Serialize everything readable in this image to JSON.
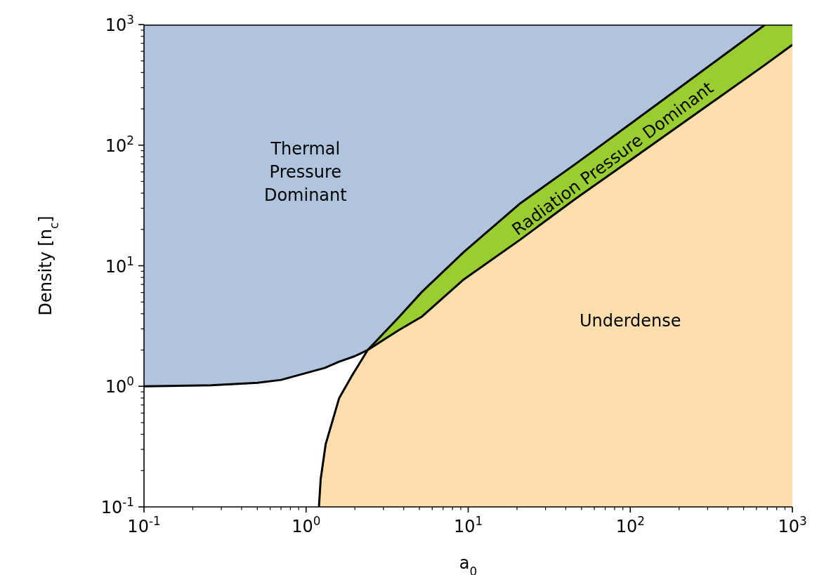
{
  "chart_data": {
    "type": "area",
    "xlabel": "a$_{0}$",
    "ylabel": "Density [n$_{c}$]",
    "xlim": [
      0.1,
      1000
    ],
    "ylim": [
      0.1,
      1000
    ],
    "log": "xy",
    "xticks": [
      {
        "value": 0.1,
        "label": "10$^{-1}$"
      },
      {
        "value": 0.2,
        "label": null
      },
      {
        "value": 0.3,
        "label": null
      },
      {
        "value": 0.4,
        "label": null
      },
      {
        "value": 0.5,
        "label": null
      },
      {
        "value": 0.6,
        "label": null
      },
      {
        "value": 0.7,
        "label": null
      },
      {
        "value": 0.8,
        "label": null
      },
      {
        "value": 0.9,
        "label": null
      },
      {
        "value": 1,
        "label": "10$^{0}$"
      },
      {
        "value": 2,
        "label": null
      },
      {
        "value": 3,
        "label": null
      },
      {
        "value": 4,
        "label": null
      },
      {
        "value": 5,
        "label": null
      },
      {
        "value": 6,
        "label": null
      },
      {
        "value": 7,
        "label": null
      },
      {
        "value": 8,
        "label": null
      },
      {
        "value": 9,
        "label": null
      },
      {
        "value": 10,
        "label": "10$^{1}$"
      },
      {
        "value": 20,
        "label": null
      },
      {
        "value": 30,
        "label": null
      },
      {
        "value": 40,
        "label": null
      },
      {
        "value": 50,
        "label": null
      },
      {
        "value": 60,
        "label": null
      },
      {
        "value": 70,
        "label": null
      },
      {
        "value": 80,
        "label": null
      },
      {
        "value": 90,
        "label": null
      },
      {
        "value": 100,
        "label": "10$^{2}$"
      },
      {
        "value": 200,
        "label": null
      },
      {
        "value": 300,
        "label": null
      },
      {
        "value": 400,
        "label": null
      },
      {
        "value": 500,
        "label": null
      },
      {
        "value": 600,
        "label": null
      },
      {
        "value": 700,
        "label": null
      },
      {
        "value": 800,
        "label": null
      },
      {
        "value": 900,
        "label": null
      },
      {
        "value": 1000,
        "label": "10$^{3}$"
      }
    ],
    "yticks": [
      {
        "value": 0.1,
        "label": "10$^{-1}$"
      },
      {
        "value": 0.2,
        "label": null
      },
      {
        "value": 0.3,
        "label": null
      },
      {
        "value": 0.4,
        "label": null
      },
      {
        "value": 0.5,
        "label": null
      },
      {
        "value": 0.6,
        "label": null
      },
      {
        "value": 0.7,
        "label": null
      },
      {
        "value": 0.8,
        "label": null
      },
      {
        "value": 0.9,
        "label": null
      },
      {
        "value": 1,
        "label": "10$^{0}$"
      },
      {
        "value": 2,
        "label": null
      },
      {
        "value": 3,
        "label": null
      },
      {
        "value": 4,
        "label": null
      },
      {
        "value": 5,
        "label": null
      },
      {
        "value": 6,
        "label": null
      },
      {
        "value": 7,
        "label": null
      },
      {
        "value": 8,
        "label": null
      },
      {
        "value": 9,
        "label": null
      },
      {
        "value": 10,
        "label": "10$^{1}$"
      },
      {
        "value": 20,
        "label": null
      },
      {
        "value": 30,
        "label": null
      },
      {
        "value": 40,
        "label": null
      },
      {
        "value": 50,
        "label": null
      },
      {
        "value": 60,
        "label": null
      },
      {
        "value": 70,
        "label": null
      },
      {
        "value": 80,
        "label": null
      },
      {
        "value": 90,
        "label": null
      },
      {
        "value": 100,
        "label": "10$^{2}$"
      },
      {
        "value": 200,
        "label": null
      },
      {
        "value": 300,
        "label": null
      },
      {
        "value": 400,
        "label": null
      },
      {
        "value": 500,
        "label": null
      },
      {
        "value": 600,
        "label": null
      },
      {
        "value": 700,
        "label": null
      },
      {
        "value": 800,
        "label": null
      },
      {
        "value": 900,
        "label": null
      },
      {
        "value": 1000,
        "label": "10$^{3}$"
      }
    ],
    "series": [
      {
        "color": "#b0c4de",
        "x": [
          0.1,
          1000
        ],
        "values": [
          1000,
          1000
        ]
      },
      {
        "color": "#ffffff",
        "x": [
          0.1,
          0.26,
          0.5,
          0.7,
          0.98,
          1.3,
          1.6,
          2.0,
          2.4
        ],
        "values": [
          1.0,
          1.02,
          1.07,
          1.13,
          1.28,
          1.42,
          1.6,
          1.78,
          2.0
        ]
      },
      {
        "color": "#9acd32",
        "x": [
          2.4,
          3.7,
          5.2,
          9.4,
          21,
          46,
          100,
          680,
          1000
        ],
        "values": [
          2.0,
          3.7,
          6.1,
          13,
          33,
          70,
          150,
          1000,
          1000
        ]
      },
      {
        "color": "#ffdead",
        "x": [
          1.2,
          1.23,
          1.32,
          1.6,
          1.9,
          2.4,
          3.7,
          5.2,
          9.4,
          21,
          46,
          100,
          680,
          1000
        ],
        "values": [
          0.1,
          0.17,
          0.33,
          0.8,
          1.2,
          2.0,
          2.9,
          3.8,
          7.7,
          16.5,
          36,
          75,
          465,
          680
        ]
      }
    ],
    "annotations": [
      "Thermal\nPressure\nDominant",
      "Radiation Pressure Dominant",
      "Underdense"
    ]
  }
}
